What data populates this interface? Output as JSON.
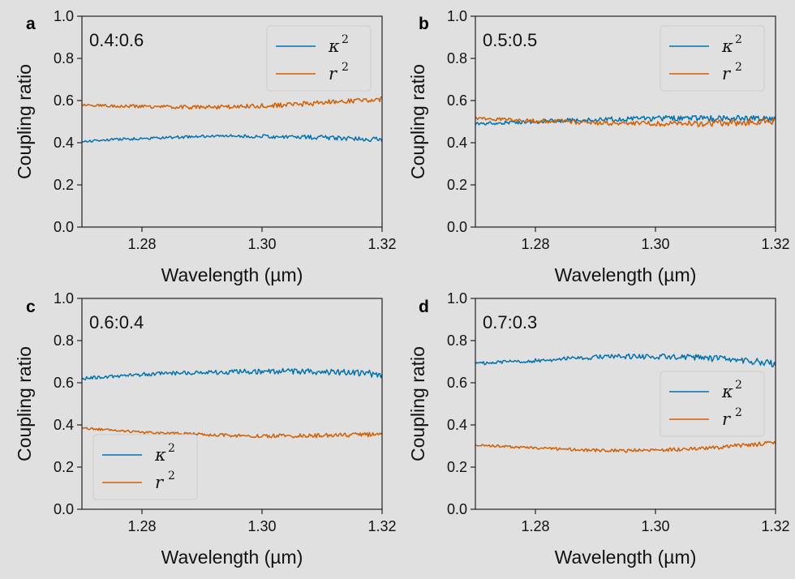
{
  "figure": {
    "background": "#e0e0e0",
    "axes_color": "#222222",
    "legend_bg": "#e0e0e0",
    "legend_border": "#cccccc"
  },
  "chart_data": [
    {
      "type": "line",
      "panel_label": "a",
      "annotation": "0.4:0.6",
      "xlabel": "Wavelength (µm)",
      "ylabel": "Coupling ratio",
      "xlim": [
        1.27,
        1.32
      ],
      "ylim": [
        0.0,
        1.0
      ],
      "xticks": [
        1.28,
        1.3,
        1.32
      ],
      "xtick_labels": [
        "1.28",
        "1.30",
        "1.32"
      ],
      "yticks": [
        0.0,
        0.2,
        0.4,
        0.6,
        0.8,
        1.0
      ],
      "ytick_labels": [
        "0.0",
        "0.2",
        "0.4",
        "0.6",
        "0.8",
        "1.0"
      ],
      "legend_position": "top-right",
      "series": [
        {
          "name": "κ",
          "sup": "2",
          "color": "#0072b2",
          "noise": 0.008,
          "x": [
            1.27,
            1.275,
            1.28,
            1.285,
            1.29,
            1.295,
            1.3,
            1.305,
            1.31,
            1.315,
            1.32
          ],
          "y": [
            0.405,
            0.415,
            0.42,
            0.425,
            0.43,
            0.432,
            0.43,
            0.428,
            0.425,
            0.42,
            0.415
          ]
        },
        {
          "name": "r",
          "sup": "2",
          "color": "#d55e00",
          "noise": 0.01,
          "x": [
            1.27,
            1.275,
            1.28,
            1.285,
            1.29,
            1.295,
            1.3,
            1.305,
            1.31,
            1.315,
            1.32
          ],
          "y": [
            0.58,
            0.575,
            0.572,
            0.57,
            0.568,
            0.57,
            0.575,
            0.58,
            0.59,
            0.6,
            0.605
          ]
        }
      ]
    },
    {
      "type": "line",
      "panel_label": "b",
      "annotation": "0.5:0.5",
      "xlabel": "Wavelength (µm)",
      "ylabel": "Coupling ratio",
      "xlim": [
        1.27,
        1.32
      ],
      "ylim": [
        0.0,
        1.0
      ],
      "xticks": [
        1.28,
        1.3,
        1.32
      ],
      "xtick_labels": [
        "1.28",
        "1.30",
        "1.32"
      ],
      "yticks": [
        0.0,
        0.2,
        0.4,
        0.6,
        0.8,
        1.0
      ],
      "ytick_labels": [
        "0.0",
        "0.2",
        "0.4",
        "0.6",
        "0.8",
        "1.0"
      ],
      "legend_position": "top-right",
      "series": [
        {
          "name": "κ",
          "sup": "2",
          "color": "#0072b2",
          "noise": 0.012,
          "x": [
            1.27,
            1.275,
            1.28,
            1.285,
            1.29,
            1.295,
            1.3,
            1.305,
            1.31,
            1.315,
            1.32
          ],
          "y": [
            0.49,
            0.495,
            0.5,
            0.505,
            0.51,
            0.512,
            0.515,
            0.515,
            0.515,
            0.515,
            0.51
          ]
        },
        {
          "name": "r",
          "sup": "2",
          "color": "#d55e00",
          "noise": 0.012,
          "x": [
            1.27,
            1.275,
            1.28,
            1.285,
            1.29,
            1.295,
            1.3,
            1.305,
            1.31,
            1.315,
            1.32
          ],
          "y": [
            0.515,
            0.51,
            0.505,
            0.5,
            0.495,
            0.492,
            0.49,
            0.49,
            0.492,
            0.495,
            0.505
          ]
        }
      ]
    },
    {
      "type": "line",
      "panel_label": "c",
      "annotation": "0.6:0.4",
      "xlabel": "Wavelength (µm)",
      "ylabel": "Coupling ratio",
      "xlim": [
        1.27,
        1.32
      ],
      "ylim": [
        0.0,
        1.0
      ],
      "xticks": [
        1.28,
        1.3,
        1.32
      ],
      "xtick_labels": [
        "1.28",
        "1.30",
        "1.32"
      ],
      "yticks": [
        0.0,
        0.2,
        0.4,
        0.6,
        0.8,
        1.0
      ],
      "ytick_labels": [
        "0.0",
        "0.2",
        "0.4",
        "0.6",
        "0.8",
        "1.0"
      ],
      "legend_position": "lower-left",
      "series": [
        {
          "name": "κ",
          "sup": "2",
          "color": "#0072b2",
          "noise": 0.012,
          "x": [
            1.27,
            1.275,
            1.28,
            1.285,
            1.29,
            1.295,
            1.3,
            1.305,
            1.31,
            1.315,
            1.32
          ],
          "y": [
            0.62,
            0.63,
            0.64,
            0.645,
            0.65,
            0.652,
            0.655,
            0.655,
            0.652,
            0.648,
            0.64
          ]
        },
        {
          "name": "r",
          "sup": "2",
          "color": "#d55e00",
          "noise": 0.008,
          "x": [
            1.27,
            1.275,
            1.28,
            1.285,
            1.29,
            1.295,
            1.3,
            1.305,
            1.31,
            1.315,
            1.32
          ],
          "y": [
            0.385,
            0.375,
            0.365,
            0.36,
            0.355,
            0.35,
            0.348,
            0.348,
            0.35,
            0.352,
            0.355
          ]
        }
      ]
    },
    {
      "type": "line",
      "panel_label": "d",
      "annotation": "0.7:0.3",
      "xlabel": "Wavelength (µm)",
      "ylabel": "Coupling ratio",
      "xlim": [
        1.27,
        1.32
      ],
      "ylim": [
        0.0,
        1.0
      ],
      "xticks": [
        1.28,
        1.3,
        1.32
      ],
      "xtick_labels": [
        "1.28",
        "1.30",
        "1.32"
      ],
      "yticks": [
        0.0,
        0.2,
        0.4,
        0.6,
        0.8,
        1.0
      ],
      "ytick_labels": [
        "0.0",
        "0.2",
        "0.4",
        "0.6",
        "0.8",
        "1.0"
      ],
      "legend_position": "center-right",
      "series": [
        {
          "name": "κ",
          "sup": "2",
          "color": "#0072b2",
          "noise": 0.012,
          "x": [
            1.27,
            1.275,
            1.28,
            1.285,
            1.29,
            1.295,
            1.3,
            1.305,
            1.31,
            1.315,
            1.32
          ],
          "y": [
            0.69,
            0.7,
            0.705,
            0.715,
            0.72,
            0.725,
            0.725,
            0.722,
            0.715,
            0.705,
            0.69
          ]
        },
        {
          "name": "r",
          "sup": "2",
          "color": "#d55e00",
          "noise": 0.008,
          "x": [
            1.27,
            1.275,
            1.28,
            1.285,
            1.29,
            1.295,
            1.3,
            1.305,
            1.31,
            1.315,
            1.32
          ],
          "y": [
            0.305,
            0.298,
            0.29,
            0.285,
            0.28,
            0.278,
            0.28,
            0.285,
            0.292,
            0.305,
            0.315
          ]
        }
      ]
    }
  ]
}
